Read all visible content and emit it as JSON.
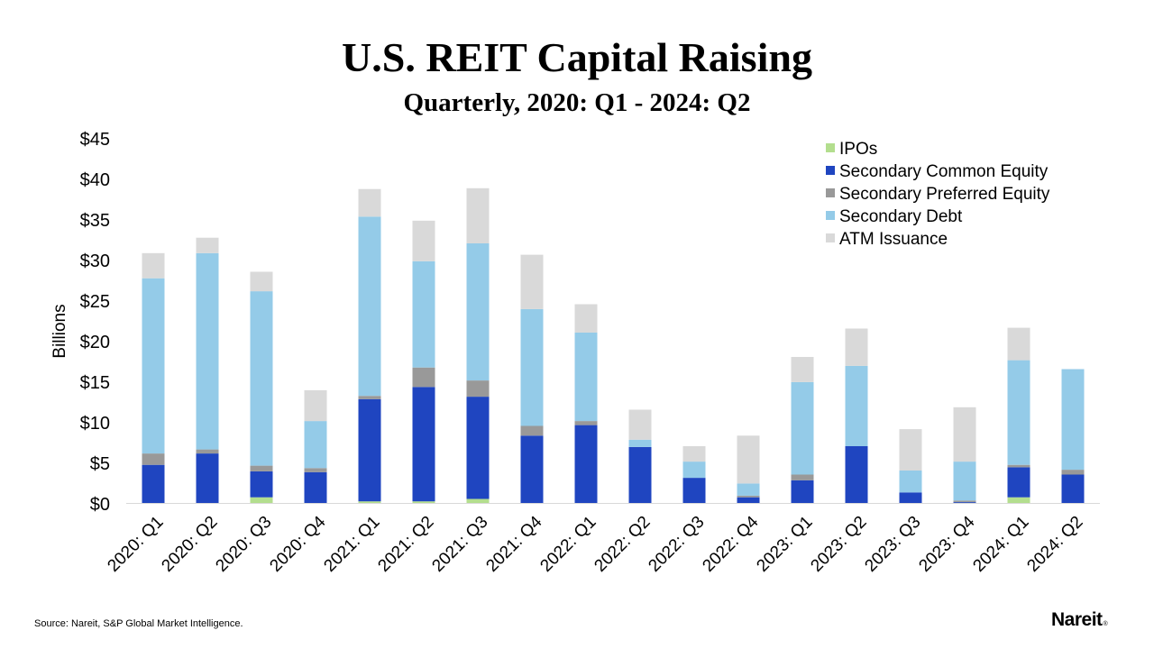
{
  "chart_data": {
    "type": "bar",
    "stacked": true,
    "title": "U.S. REIT Capital Raising",
    "subtitle": "Quarterly, 2020: Q1 - 2024: Q2",
    "ylabel": "Billions",
    "xlabel": "",
    "ylim": [
      0,
      45
    ],
    "ytick_values": [
      0,
      5,
      10,
      15,
      20,
      25,
      30,
      35,
      40,
      45
    ],
    "ytick_labels": [
      "$0",
      "$5",
      "$10",
      "$15",
      "$20",
      "$25",
      "$30",
      "$35",
      "$40",
      "$45"
    ],
    "legend_position": "top-right",
    "categories": [
      "2020: Q1",
      "2020: Q2",
      "2020: Q3",
      "2020: Q4",
      "2021: Q1",
      "2021: Q2",
      "2021: Q3",
      "2021: Q4",
      "2022: Q1",
      "2022: Q2",
      "2022: Q3",
      "2022: Q4",
      "2023: Q1",
      "2023: Q2",
      "2023: Q3",
      "2023: Q4",
      "2024: Q1",
      "2024: Q2"
    ],
    "series": [
      {
        "name": "IPOs",
        "color": "#b3de8e",
        "values": [
          0,
          0,
          0.7,
          0,
          0.2,
          0.2,
          0.5,
          0,
          0,
          0,
          0,
          0,
          0,
          0,
          0,
          0,
          0.7,
          0
        ]
      },
      {
        "name": "Secondary Common Equity",
        "color": "#1f45c0",
        "values": [
          4.7,
          6.1,
          3.2,
          3.8,
          12.6,
          14.1,
          12.6,
          8.3,
          9.6,
          6.9,
          3.1,
          0.7,
          2.8,
          7.0,
          1.3,
          0.1,
          3.7,
          3.5
        ]
      },
      {
        "name": "Secondary Preferred Equity",
        "color": "#999999",
        "values": [
          1.4,
          0.5,
          0.7,
          0.5,
          0.4,
          2.4,
          2.0,
          1.2,
          0.5,
          0,
          0,
          0.2,
          0.7,
          0,
          0,
          0.2,
          0.3,
          0.6
        ]
      },
      {
        "name": "Secondary Debt",
        "color": "#94cbe8",
        "values": [
          21.6,
          24.2,
          21.5,
          5.8,
          22.1,
          13.1,
          16.9,
          14.4,
          10.9,
          0.9,
          2.0,
          1.5,
          11.4,
          9.9,
          2.7,
          4.8,
          12.9,
          12.4
        ]
      },
      {
        "name": "ATM Issuance",
        "color": "#d9d9d9",
        "values": [
          3.1,
          1.9,
          2.4,
          3.8,
          3.4,
          5.0,
          6.8,
          6.7,
          3.5,
          3.7,
          1.9,
          5.9,
          3.1,
          4.6,
          5.1,
          6.7,
          4.0,
          0
        ]
      }
    ]
  },
  "footer": {
    "source": "Source: Nareit, S&P Global Market Intelligence.",
    "logo_text": "Nareit",
    "logo_mark": "®"
  }
}
